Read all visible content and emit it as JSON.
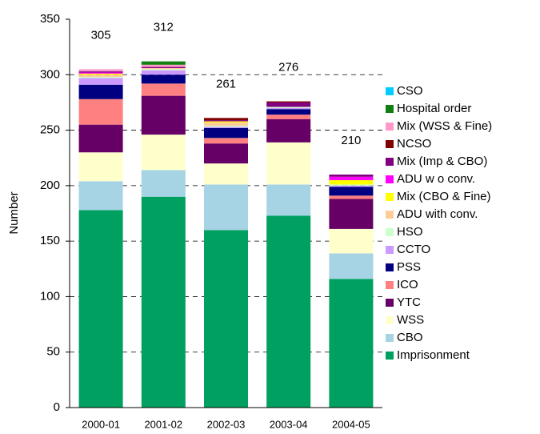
{
  "chart_data": {
    "type": "stacked_bar",
    "y_label": "Number",
    "categories": [
      "2000-01",
      "2001-02",
      "2002-03",
      "2003-04",
      "2004-05"
    ],
    "totals": [
      305,
      312,
      261,
      276,
      210
    ],
    "ylim": [
      0,
      350
    ],
    "yticks": [
      0,
      50,
      100,
      150,
      200,
      250,
      300,
      350
    ],
    "grid": true,
    "series": [
      {
        "name": "Imprisonment",
        "color": "#00a060",
        "values": [
          178,
          190,
          160,
          173,
          116
        ]
      },
      {
        "name": "CBO",
        "color": "#a6d4e4",
        "values": [
          26,
          24,
          41,
          28,
          23
        ]
      },
      {
        "name": "WSS",
        "color": "#ffffcc",
        "values": [
          26,
          32,
          19,
          38,
          22
        ]
      },
      {
        "name": "YTC",
        "color": "#660066",
        "values": [
          25,
          35,
          18,
          21,
          27
        ]
      },
      {
        "name": "ICO",
        "color": "#ff8080",
        "values": [
          23,
          11,
          5,
          4,
          3
        ]
      },
      {
        "name": "PSS",
        "color": "#000080",
        "values": [
          13,
          8,
          9,
          5,
          8
        ]
      },
      {
        "name": "CCTO",
        "color": "#cc99ff",
        "values": [
          6,
          4,
          1,
          1,
          1
        ]
      },
      {
        "name": "HSO",
        "color": "#ccffcc",
        "values": [
          1,
          1,
          1,
          1,
          1
        ]
      },
      {
        "name": "ADU with conv.",
        "color": "#ffcc99",
        "values": [
          2,
          1,
          3,
          0,
          0
        ]
      },
      {
        "name": "Mix (CBO & Fine)",
        "color": "#ffff00",
        "values": [
          1,
          0,
          1,
          0,
          4
        ]
      },
      {
        "name": "ADU w o conv.",
        "color": "#ff00ff",
        "values": [
          1,
          0,
          0,
          0,
          3
        ]
      },
      {
        "name": "Mix (Imp & CBO)",
        "color": "#800080",
        "values": [
          1,
          1,
          1,
          4,
          2
        ]
      },
      {
        "name": "NCSO",
        "color": "#800000",
        "values": [
          0,
          0,
          2,
          1,
          0
        ]
      },
      {
        "name": "Mix (WSS & Fine)",
        "color": "#ff99cc",
        "values": [
          2,
          2,
          0,
          0,
          0
        ]
      },
      {
        "name": "Hospital order",
        "color": "#108010",
        "values": [
          0,
          3,
          0,
          0,
          0
        ]
      },
      {
        "name": "CSO",
        "color": "#00ccff",
        "values": [
          0,
          0,
          0,
          0,
          0
        ]
      }
    ]
  }
}
